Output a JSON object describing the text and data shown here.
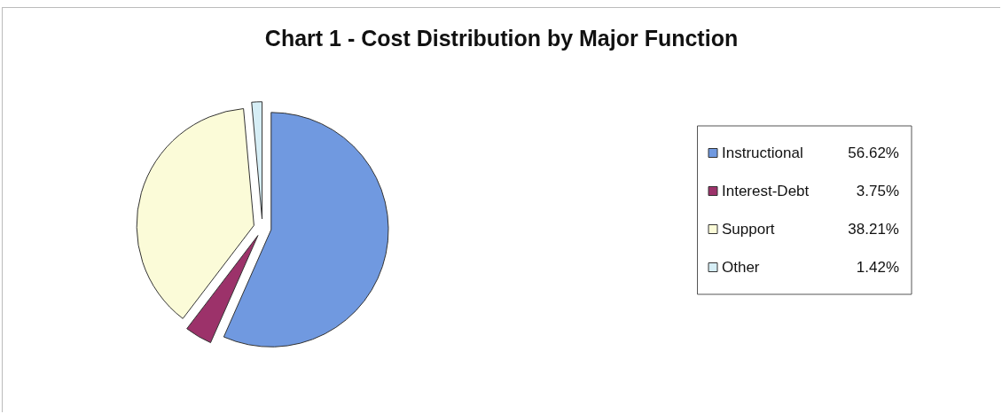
{
  "chart_data": {
    "type": "pie",
    "title": "Chart 1 - Cost Distribution by Major Function",
    "categories": [
      "Instructional",
      "Interest-Debt",
      "Support",
      "Other"
    ],
    "values": [
      56.62,
      3.75,
      38.21,
      1.42
    ],
    "value_labels": [
      "56.62%",
      "3.75%",
      "38.21%",
      "1.42%"
    ],
    "colors": [
      "#7099e0",
      "#9c326a",
      "#fbfbd8",
      "#d6eef6"
    ],
    "legend": "right"
  }
}
